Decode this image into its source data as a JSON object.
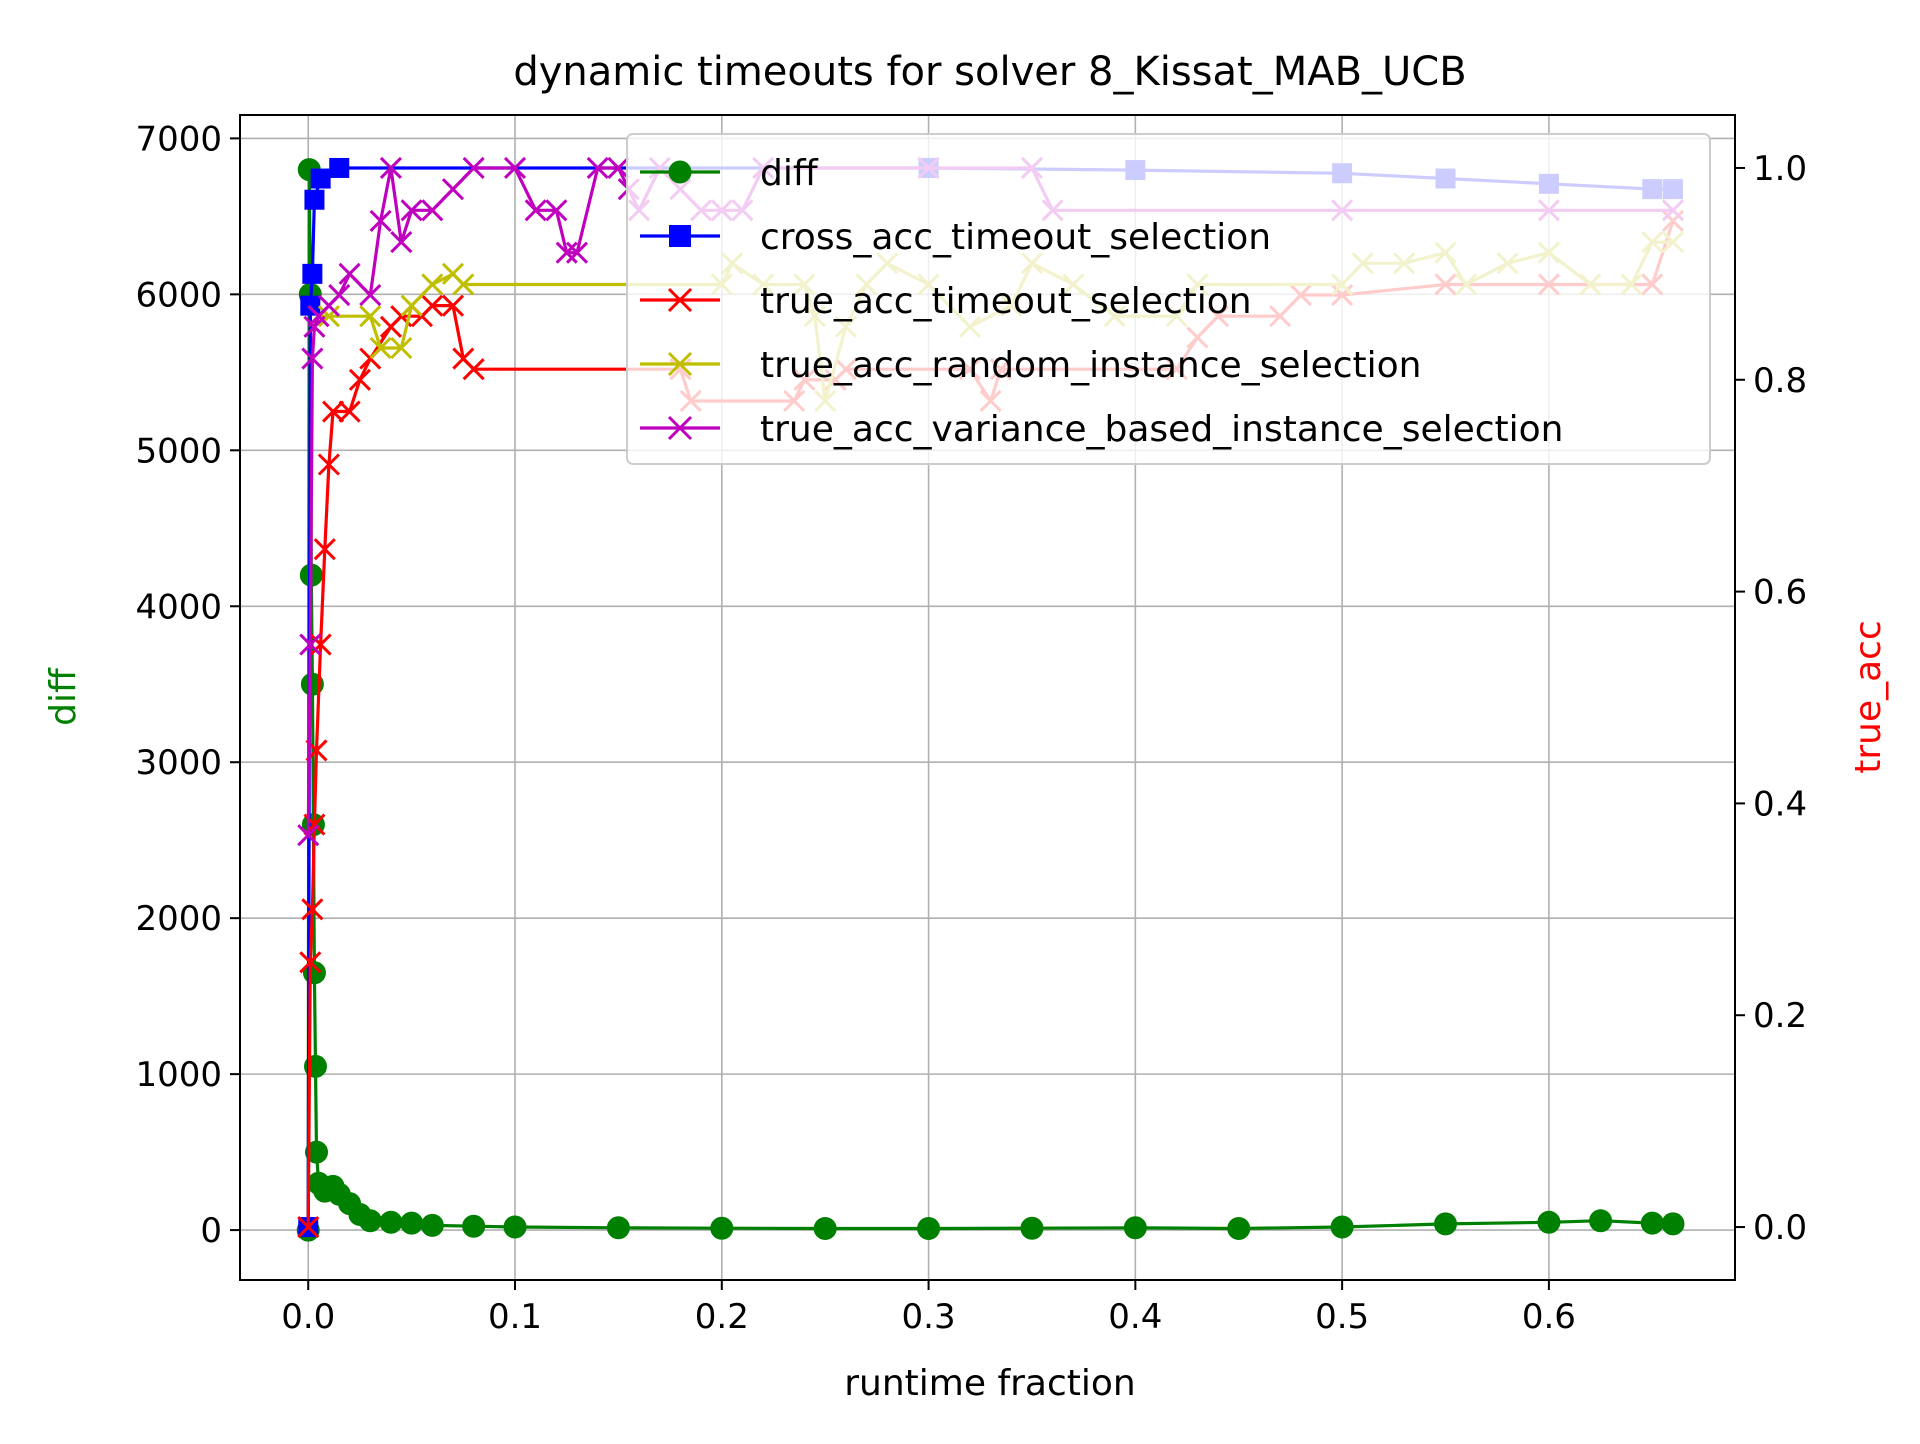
{
  "chart_data": {
    "type": "line",
    "title": "dynamic timeouts for solver 8_Kissat_MAB_UCB",
    "xlabel": "runtime fraction",
    "ylabel_left": "diff",
    "ylabel_right": "true_acc",
    "xlim": [
      -0.033,
      0.69
    ],
    "ylim_left": [
      -320,
      7150
    ],
    "ylim_right": [
      -0.05,
      1.05
    ],
    "xticks": [
      0.0,
      0.1,
      0.2,
      0.3,
      0.4,
      0.5,
      0.6
    ],
    "xtick_labels": [
      "0.0",
      "0.1",
      "0.2",
      "0.3",
      "0.4",
      "0.5",
      "0.6"
    ],
    "yticks_left": [
      0,
      1000,
      2000,
      3000,
      4000,
      5000,
      6000,
      7000
    ],
    "ytick_labels_left": [
      "0",
      "1000",
      "2000",
      "3000",
      "4000",
      "5000",
      "6000",
      "7000"
    ],
    "yticks_right": [
      0.0,
      0.2,
      0.4,
      0.6,
      0.8,
      1.0
    ],
    "ytick_labels_right": [
      "0.0",
      "0.2",
      "0.4",
      "0.6",
      "0.8",
      "1.0"
    ],
    "grid": true,
    "legend_position": "top-right",
    "colors": {
      "diff": "#008000",
      "cross_acc": "#0000ff",
      "true_acc_timeout": "#ff0000",
      "true_acc_random": "#bfbf00",
      "true_acc_variance": "#bf00bf",
      "left_axis_label": "#008000",
      "right_axis_label": "#ff0000"
    },
    "legend": [
      {
        "label": "diff",
        "color": "#008000",
        "marker": "circle"
      },
      {
        "label": "cross_acc_timeout_selection",
        "color": "#0000ff",
        "marker": "square"
      },
      {
        "label": "true_acc_timeout_selection",
        "color": "#ff0000",
        "marker": "x"
      },
      {
        "label": "true_acc_random_instance_selection",
        "color": "#bfbf00",
        "marker": "x"
      },
      {
        "label": "true_acc_variance_based_instance_selection",
        "color": "#bf00bf",
        "marker": "x"
      }
    ],
    "series": [
      {
        "name": "diff",
        "axis": "left",
        "color": "#008000",
        "marker": "circle",
        "points": [
          [
            0,
            0
          ],
          [
            0.0005,
            6800
          ],
          [
            0.001,
            6000
          ],
          [
            0.0015,
            4200
          ],
          [
            0.002,
            3500
          ],
          [
            0.0025,
            2600
          ],
          [
            0.003,
            1650
          ],
          [
            0.0035,
            1050
          ],
          [
            0.004,
            500
          ],
          [
            0.005,
            300
          ],
          [
            0.008,
            250
          ],
          [
            0.012,
            280
          ],
          [
            0.015,
            230
          ],
          [
            0.02,
            170
          ],
          [
            0.025,
            100
          ],
          [
            0.03,
            60
          ],
          [
            0.04,
            50
          ],
          [
            0.05,
            45
          ],
          [
            0.06,
            30
          ],
          [
            0.08,
            25
          ],
          [
            0.1,
            20
          ],
          [
            0.15,
            15
          ],
          [
            0.2,
            12
          ],
          [
            0.25,
            10
          ],
          [
            0.3,
            10
          ],
          [
            0.35,
            12
          ],
          [
            0.4,
            15
          ],
          [
            0.45,
            10
          ],
          [
            0.5,
            20
          ],
          [
            0.55,
            40
          ],
          [
            0.6,
            50
          ],
          [
            0.625,
            60
          ],
          [
            0.65,
            45
          ],
          [
            0.66,
            40
          ]
        ]
      },
      {
        "name": "cross_acc_timeout_selection",
        "axis": "right",
        "color": "#0000ff",
        "marker": "square",
        "points": [
          [
            0,
            0
          ],
          [
            0.001,
            0.87
          ],
          [
            0.002,
            0.9
          ],
          [
            0.003,
            0.97
          ],
          [
            0.006,
            0.99
          ],
          [
            0.015,
            1.0
          ],
          [
            0.3,
            1.0
          ],
          [
            0.4,
            0.998
          ],
          [
            0.5,
            0.995
          ],
          [
            0.55,
            0.99
          ],
          [
            0.6,
            0.985
          ],
          [
            0.65,
            0.98
          ],
          [
            0.66,
            0.98
          ]
        ]
      },
      {
        "name": "true_acc_timeout_selection",
        "axis": "right",
        "color": "#ff0000",
        "marker": "x",
        "points": [
          [
            0,
            0
          ],
          [
            0.001,
            0.25
          ],
          [
            0.002,
            0.3
          ],
          [
            0.003,
            0.38
          ],
          [
            0.004,
            0.45
          ],
          [
            0.006,
            0.55
          ],
          [
            0.008,
            0.64
          ],
          [
            0.01,
            0.72
          ],
          [
            0.012,
            0.77
          ],
          [
            0.02,
            0.77
          ],
          [
            0.025,
            0.8
          ],
          [
            0.03,
            0.82
          ],
          [
            0.04,
            0.85
          ],
          [
            0.045,
            0.86
          ],
          [
            0.055,
            0.86
          ],
          [
            0.06,
            0.87
          ],
          [
            0.07,
            0.87
          ],
          [
            0.075,
            0.82
          ],
          [
            0.08,
            0.81
          ],
          [
            0.18,
            0.81
          ],
          [
            0.185,
            0.78
          ],
          [
            0.235,
            0.78
          ],
          [
            0.24,
            0.8
          ],
          [
            0.255,
            0.8
          ],
          [
            0.26,
            0.81
          ],
          [
            0.32,
            0.81
          ],
          [
            0.33,
            0.78
          ],
          [
            0.335,
            0.81
          ],
          [
            0.42,
            0.81
          ],
          [
            0.43,
            0.84
          ],
          [
            0.44,
            0.86
          ],
          [
            0.47,
            0.86
          ],
          [
            0.48,
            0.88
          ],
          [
            0.5,
            0.88
          ],
          [
            0.55,
            0.89
          ],
          [
            0.6,
            0.89
          ],
          [
            0.62,
            0.89
          ],
          [
            0.65,
            0.89
          ],
          [
            0.66,
            0.95
          ]
        ]
      },
      {
        "name": "true_acc_random_instance_selection",
        "axis": "right",
        "color": "#bfbf00",
        "marker": "x",
        "points": [
          [
            0.005,
            0.86
          ],
          [
            0.01,
            0.86
          ],
          [
            0.03,
            0.86
          ],
          [
            0.035,
            0.83
          ],
          [
            0.045,
            0.83
          ],
          [
            0.05,
            0.87
          ],
          [
            0.06,
            0.89
          ],
          [
            0.07,
            0.9
          ],
          [
            0.075,
            0.89
          ],
          [
            0.2,
            0.89
          ],
          [
            0.205,
            0.91
          ],
          [
            0.22,
            0.89
          ],
          [
            0.24,
            0.89
          ],
          [
            0.245,
            0.86
          ],
          [
            0.25,
            0.78
          ],
          [
            0.26,
            0.85
          ],
          [
            0.27,
            0.89
          ],
          [
            0.28,
            0.91
          ],
          [
            0.3,
            0.89
          ],
          [
            0.32,
            0.85
          ],
          [
            0.34,
            0.87
          ],
          [
            0.35,
            0.91
          ],
          [
            0.37,
            0.89
          ],
          [
            0.39,
            0.86
          ],
          [
            0.42,
            0.86
          ],
          [
            0.43,
            0.89
          ],
          [
            0.5,
            0.89
          ],
          [
            0.51,
            0.91
          ],
          [
            0.53,
            0.91
          ],
          [
            0.55,
            0.92
          ],
          [
            0.56,
            0.89
          ],
          [
            0.58,
            0.91
          ],
          [
            0.6,
            0.92
          ],
          [
            0.62,
            0.89
          ],
          [
            0.64,
            0.89
          ],
          [
            0.65,
            0.93
          ],
          [
            0.66,
            0.93
          ]
        ]
      },
      {
        "name": "true_acc_variance_based_instance_selection",
        "axis": "right",
        "color": "#bf00bf",
        "marker": "x",
        "points": [
          [
            0,
            0.37
          ],
          [
            0.001,
            0.55
          ],
          [
            0.002,
            0.82
          ],
          [
            0.003,
            0.85
          ],
          [
            0.005,
            0.86
          ],
          [
            0.01,
            0.87
          ],
          [
            0.015,
            0.88
          ],
          [
            0.02,
            0.9
          ],
          [
            0.03,
            0.88
          ],
          [
            0.035,
            0.95
          ],
          [
            0.04,
            1.0
          ],
          [
            0.045,
            0.93
          ],
          [
            0.05,
            0.96
          ],
          [
            0.06,
            0.96
          ],
          [
            0.07,
            0.98
          ],
          [
            0.08,
            1.0
          ],
          [
            0.1,
            1.0
          ],
          [
            0.11,
            0.96
          ],
          [
            0.12,
            0.96
          ],
          [
            0.125,
            0.92
          ],
          [
            0.13,
            0.92
          ],
          [
            0.14,
            1.0
          ],
          [
            0.15,
            1.0
          ],
          [
            0.155,
            0.98
          ],
          [
            0.16,
            0.96
          ],
          [
            0.17,
            1.0
          ],
          [
            0.18,
            0.98
          ],
          [
            0.19,
            0.96
          ],
          [
            0.2,
            0.96
          ],
          [
            0.21,
            0.96
          ],
          [
            0.22,
            1.0
          ],
          [
            0.3,
            1.0
          ],
          [
            0.35,
            1.0
          ],
          [
            0.36,
            0.96
          ],
          [
            0.5,
            0.96
          ],
          [
            0.6,
            0.96
          ],
          [
            0.66,
            0.96
          ]
        ]
      }
    ]
  }
}
